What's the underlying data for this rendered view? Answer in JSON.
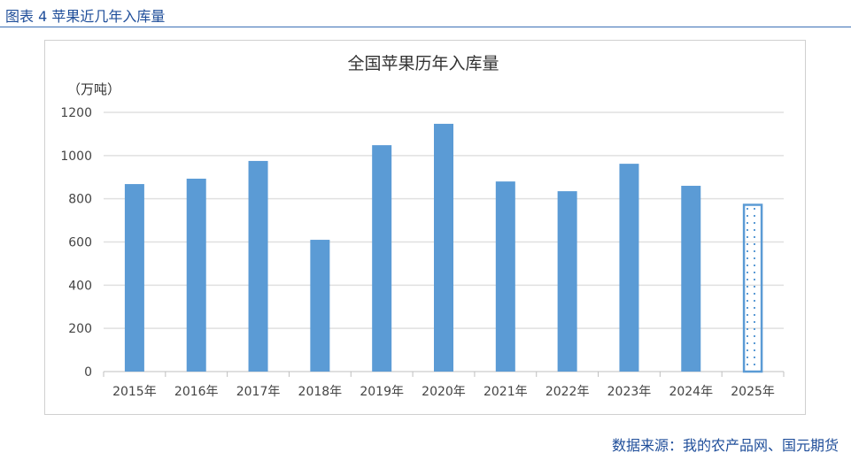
{
  "figure_label": "图表 4  苹果近几年入库量",
  "source": "数据来源：我的农产品网、国元期货",
  "chart_data": {
    "type": "bar",
    "title": "全国苹果历年入库量",
    "ylabel": "（万吨）",
    "xlabel": "",
    "ylim": [
      0,
      1200
    ],
    "yticks": [
      0,
      200,
      400,
      600,
      800,
      1000,
      1200
    ],
    "grid": true,
    "categories": [
      "2015年",
      "2016年",
      "2017年",
      "2018年",
      "2019年",
      "2020年",
      "2021年",
      "2022年",
      "2023年",
      "2024年",
      "2025年"
    ],
    "values": [
      868,
      893,
      975,
      610,
      1048,
      1147,
      880,
      835,
      962,
      860,
      776
    ],
    "bar_color": "#5b9bd5",
    "note": "2025年 bar shown with dotted pattern (estimate)"
  }
}
